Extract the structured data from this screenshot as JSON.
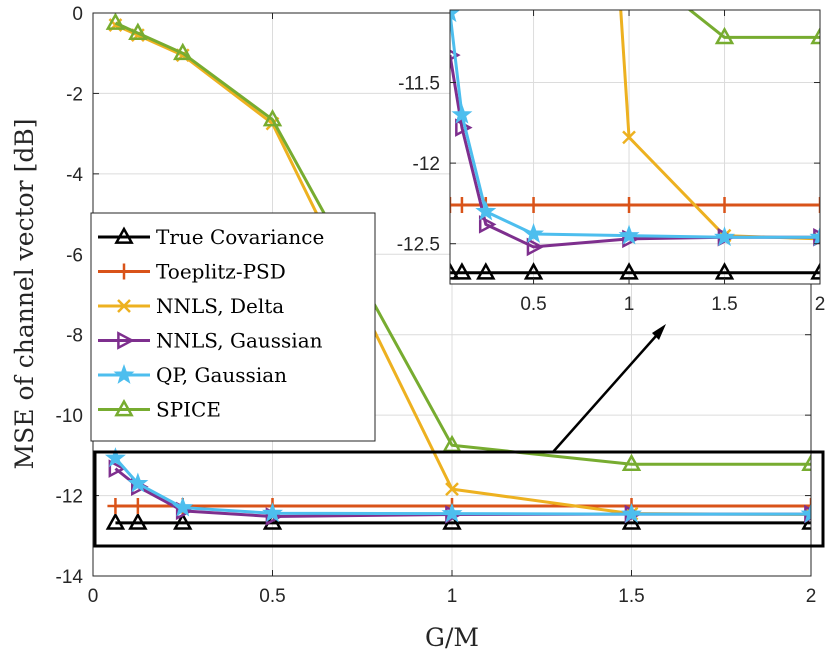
{
  "chart_data": [
    {
      "id": "main",
      "type": "line",
      "xlabel": "G/M",
      "ylabel": "MSE of channel vector [dB]",
      "xlim": [
        0,
        2
      ],
      "ylim": [
        -14,
        0
      ],
      "xticks": [
        0,
        0.5,
        1,
        1.5,
        2
      ],
      "xtick_labels": [
        "0",
        "0.5",
        "1",
        "1.5",
        "2"
      ],
      "yticks": [
        0,
        -2,
        -4,
        -6,
        -8,
        -10,
        -12,
        -14
      ],
      "ytick_labels": [
        "0",
        "-2",
        "-4",
        "-6",
        "-8",
        "-10",
        "-12",
        "-14"
      ],
      "grid": true,
      "legend_position": "center-left",
      "series": [
        {
          "name": "True Covariance",
          "color": "#000000",
          "marker": "triangle-up",
          "x": [
            0.0625,
            0.125,
            0.25,
            0.5,
            1,
            1.5,
            2
          ],
          "y": [
            -12.68,
            -12.68,
            -12.68,
            -12.68,
            -12.68,
            -12.68,
            -12.68
          ]
        },
        {
          "name": "Toeplitz-PSD",
          "color": "#D95319",
          "marker": "plus",
          "x": [
            0.0625,
            0.125,
            0.25,
            0.5,
            1,
            1.5,
            2
          ],
          "y": [
            -12.26,
            -12.26,
            -12.26,
            -12.26,
            -12.26,
            -12.26,
            -12.26
          ]
        },
        {
          "name": "NNLS, Delta",
          "color": "#EDB120",
          "marker": "x",
          "x": [
            0.0625,
            0.125,
            0.25,
            0.5,
            1,
            1.5,
            2
          ],
          "y": [
            -0.3,
            -0.55,
            -1.05,
            -2.75,
            -11.84,
            -12.45,
            -12.47
          ]
        },
        {
          "name": "NNLS, Gaussian",
          "color": "#7E2F8E",
          "marker": "triangle-right",
          "x": [
            0.0625,
            0.125,
            0.25,
            0.5,
            1,
            1.5,
            2
          ],
          "y": [
            -11.33,
            -11.78,
            -12.38,
            -12.52,
            -12.47,
            -12.46,
            -12.46
          ]
        },
        {
          "name": "QP, Gaussian",
          "color": "#4DBEEE",
          "marker": "star",
          "x": [
            0.0625,
            0.125,
            0.25,
            0.5,
            1,
            1.5,
            2
          ],
          "y": [
            -11.07,
            -11.7,
            -12.3,
            -12.44,
            -12.45,
            -12.46,
            -12.46
          ]
        },
        {
          "name": "SPICE",
          "color": "#77AC30",
          "marker": "triangle-up",
          "x": [
            0.0625,
            0.125,
            0.25,
            0.5,
            1,
            1.5,
            2
          ],
          "y": [
            -0.25,
            -0.5,
            -1.0,
            -2.65,
            -10.75,
            -11.22,
            -11.22
          ]
        }
      ]
    },
    {
      "id": "inset",
      "type": "line",
      "note": "zoomed view of the boxed region",
      "xlim": [
        0.0625,
        2
      ],
      "ylim": [
        -12.75,
        -11.05
      ],
      "xticks": [
        0.5,
        1,
        1.5,
        2
      ],
      "xtick_labels": [
        "0.5",
        "1",
        "1.5",
        "2"
      ],
      "yticks": [
        -11.5,
        -12,
        -12.5
      ],
      "ytick_labels": [
        "-11.5",
        "-12",
        "-12.5"
      ],
      "grid": true,
      "series_ref": "main"
    }
  ]
}
